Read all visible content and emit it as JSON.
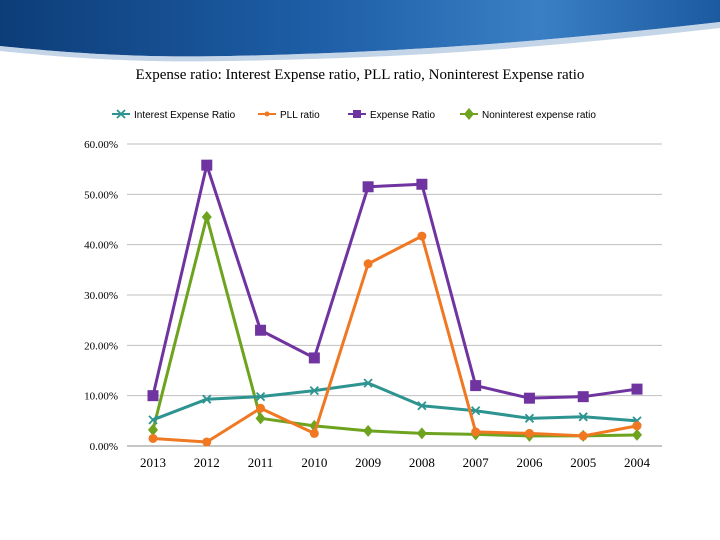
{
  "chart_data": {
    "type": "line",
    "title": "Expense ratio: Interest Expense ratio, PLL ratio, Noninterest Expense ratio",
    "xlabel": "",
    "ylabel": "",
    "categories": [
      "2013",
      "2012",
      "2011",
      "2010",
      "2009",
      "2008",
      "2007",
      "2006",
      "2005",
      "2004"
    ],
    "y_ticks": [
      "60.00%",
      "50.00%",
      "40.00%",
      "30.00%",
      "20.00%",
      "10.00%",
      "0.00%"
    ],
    "ylim": [
      0,
      60
    ],
    "grid": true,
    "legend_position": "top",
    "series": [
      {
        "name": "Interest Expense Ratio",
        "color": "#2e9490",
        "marker": "x",
        "values": [
          5.2,
          9.3,
          9.8,
          11.0,
          12.5,
          8.0,
          7.0,
          5.5,
          5.8,
          5.0
        ]
      },
      {
        "name": "PLL ratio",
        "color": "#f07822",
        "marker": "circle",
        "values": [
          1.5,
          0.8,
          7.5,
          2.5,
          36.2,
          41.7,
          2.8,
          2.5,
          2.0,
          4.0
        ]
      },
      {
        "name": "Expense Ratio",
        "color": "#6f34a0",
        "marker": "square",
        "values": [
          10.0,
          55.8,
          23.0,
          17.5,
          51.5,
          52.0,
          12.0,
          9.5,
          9.8,
          11.3
        ]
      },
      {
        "name": "Noninterest expense ratio",
        "color": "#6da31f",
        "marker": "diamond",
        "values": [
          3.2,
          45.5,
          5.5,
          4.0,
          3.0,
          2.5,
          2.3,
          2.0,
          2.0,
          2.2
        ]
      }
    ]
  }
}
